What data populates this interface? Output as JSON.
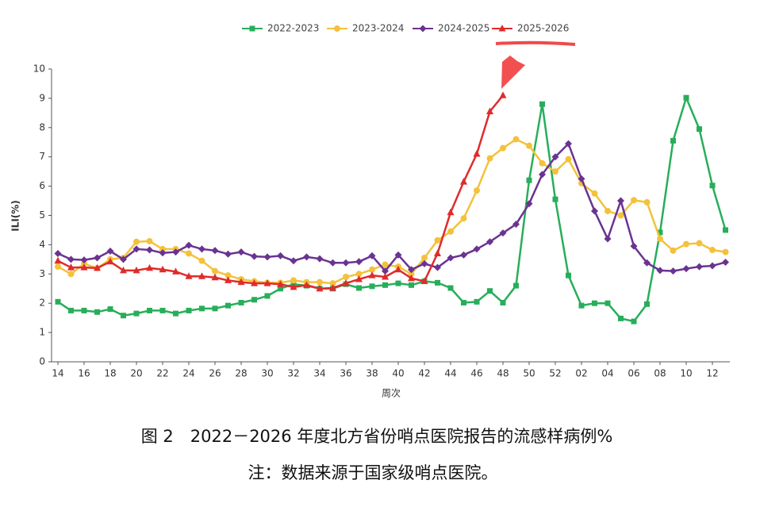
{
  "chart_data": {
    "type": "line",
    "y_label": "ILI(%)",
    "x_label": "周次",
    "caption": "图 2　2022－2026 年度北方省份哨点医院报告的流感样病例%",
    "note": "注：数据来源于国家级哨点医院。",
    "categories": [
      "14",
      null,
      "16",
      null,
      "18",
      null,
      "20",
      null,
      "22",
      null,
      "24",
      null,
      "26",
      null,
      "28",
      null,
      "30",
      null,
      "32",
      null,
      "34",
      null,
      "36",
      null,
      "38",
      null,
      "40",
      null,
      "42",
      null,
      "44",
      null,
      "46",
      null,
      "48",
      null,
      "50",
      null,
      "52",
      null,
      "02",
      null,
      "04",
      null,
      "06",
      null,
      "08",
      null,
      "10",
      null,
      "12",
      null
    ],
    "ylim": [
      0,
      10
    ],
    "yticks": [
      0,
      1,
      2,
      3,
      4,
      5,
      6,
      7,
      8,
      9,
      10
    ],
    "series": [
      {
        "name": "2022-2023",
        "color": "#27ae5a",
        "marker": "square",
        "values": [
          2.05,
          1.75,
          1.75,
          1.7,
          1.8,
          1.58,
          1.65,
          1.75,
          1.75,
          1.65,
          1.75,
          1.82,
          1.82,
          1.92,
          2.02,
          2.12,
          2.25,
          2.5,
          2.65,
          2.6,
          2.5,
          2.5,
          2.65,
          2.52,
          2.58,
          2.62,
          2.68,
          2.62,
          2.75,
          2.7,
          2.52,
          2.02,
          2.05,
          2.42,
          2.02,
          2.6,
          6.2,
          8.8,
          5.55,
          2.95,
          1.92,
          2.0,
          2.0,
          1.48,
          1.38,
          1.97,
          4.42,
          7.55,
          9.02,
          7.95,
          6.02,
          4.5
        ]
      },
      {
        "name": "2023-2024",
        "color": "#f3c23c",
        "marker": "circle",
        "values": [
          3.25,
          3.0,
          3.35,
          3.2,
          3.5,
          3.55,
          4.1,
          4.12,
          3.85,
          3.85,
          3.7,
          3.45,
          3.1,
          2.95,
          2.82,
          2.75,
          2.7,
          2.7,
          2.78,
          2.72,
          2.72,
          2.68,
          2.9,
          3.0,
          3.15,
          3.32,
          3.25,
          3.0,
          3.55,
          4.15,
          4.45,
          4.9,
          5.85,
          6.95,
          7.3,
          7.6,
          7.38,
          6.78,
          6.5,
          6.92,
          6.1,
          5.75,
          5.15,
          5.0,
          5.52,
          5.45,
          4.2,
          3.8,
          4.02,
          4.05,
          3.82,
          3.75
        ]
      },
      {
        "name": "2024-2025",
        "color": "#6a3391",
        "marker": "diamond",
        "values": [
          3.7,
          3.5,
          3.48,
          3.55,
          3.78,
          3.5,
          3.85,
          3.82,
          3.72,
          3.75,
          3.98,
          3.85,
          3.8,
          3.68,
          3.75,
          3.6,
          3.58,
          3.62,
          3.45,
          3.58,
          3.52,
          3.38,
          3.38,
          3.42,
          3.62,
          3.1,
          3.65,
          3.15,
          3.35,
          3.22,
          3.55,
          3.65,
          3.85,
          4.1,
          4.4,
          4.7,
          5.4,
          6.4,
          7.0,
          7.45,
          6.25,
          5.15,
          4.2,
          5.5,
          3.95,
          3.38,
          3.12,
          3.1,
          3.18,
          3.25,
          3.28,
          3.4
        ]
      },
      {
        "name": "2025-2026",
        "color": "#e02b2b",
        "marker": "triangle",
        "values": [
          3.45,
          3.22,
          3.22,
          3.2,
          3.42,
          3.12,
          3.12,
          3.2,
          3.15,
          3.08,
          2.92,
          2.92,
          2.88,
          2.78,
          2.72,
          2.68,
          2.68,
          2.65,
          2.55,
          2.62,
          2.5,
          2.52,
          2.68,
          2.82,
          2.95,
          2.9,
          3.15,
          2.85,
          2.75,
          3.7,
          5.1,
          6.15,
          7.1,
          8.55,
          9.1,
          null,
          null,
          null,
          null,
          null,
          null,
          null,
          null,
          null,
          null,
          null,
          null,
          null,
          null,
          null,
          null,
          null
        ]
      }
    ]
  }
}
